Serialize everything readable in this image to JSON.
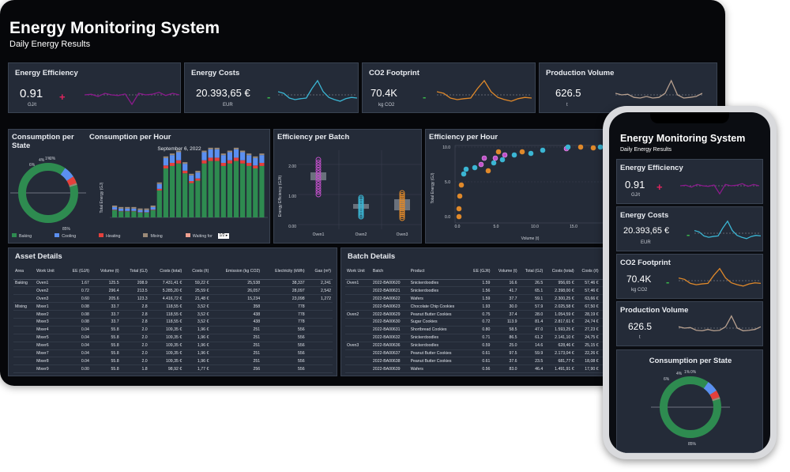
{
  "header": {
    "title": "Energy Monitoring System",
    "subtitle": "Daily Energy Results"
  },
  "kpis": [
    {
      "title": "Energy Efficiency",
      "value": "0.91",
      "unit": "GJ/t",
      "sign": "+",
      "sign_color": "#e0245e",
      "line_color": "#8b1a8c",
      "trend": [
        0.5,
        0.52,
        0.45,
        0.55,
        0.5,
        0.48,
        0.53,
        0.2,
        0.55,
        0.5,
        0.52,
        0.58,
        0.48,
        0.55,
        0.5
      ]
    },
    {
      "title": "Energy Costs",
      "value": "20.393,65 €",
      "unit": "EUR",
      "sign": "-",
      "sign_color": "#39b54a",
      "line_color": "#3bb6d4",
      "trend": [
        0.6,
        0.55,
        0.4,
        0.35,
        0.38,
        0.4,
        0.7,
        0.95,
        0.6,
        0.42,
        0.35,
        0.3,
        0.38,
        0.42,
        0.4
      ]
    },
    {
      "title": "CO2 Footprint",
      "value": "70.4K",
      "unit": "kg CO2",
      "sign": "-",
      "sign_color": "#39b54a",
      "line_color": "#e0892a",
      "trend": [
        0.6,
        0.55,
        0.4,
        0.35,
        0.38,
        0.4,
        0.7,
        0.95,
        0.6,
        0.42,
        0.35,
        0.3,
        0.38,
        0.42,
        0.4
      ]
    },
    {
      "title": "Production Volume",
      "value": "626.5",
      "unit": "t",
      "sign": "",
      "sign_color": "#ffffff",
      "line_color": "#b7a08f",
      "trend": [
        0.55,
        0.5,
        0.52,
        0.42,
        0.4,
        0.45,
        0.4,
        0.42,
        0.55,
        0.95,
        0.5,
        0.4,
        0.42,
        0.45,
        0.55
      ]
    }
  ],
  "consumption_state": {
    "title": "Consumption per State",
    "labels": {
      "baking": "85%",
      "cooling": "6%",
      "heating": "4%",
      "mixing": "1%",
      "waiting": "0%"
    }
  },
  "consumption_hour": {
    "title": "Consumption per Hour",
    "date": "September 6, 2022",
    "ylabel": "Total Energy (GJ)",
    "legend": [
      "Baking",
      "Cooling",
      "Heating",
      "Mixing",
      "Waiting for"
    ],
    "legend_colors": [
      "#2e8b50",
      "#5b8ff0",
      "#e4403c",
      "#9b8a78",
      "#f0a090"
    ]
  },
  "efficiency_batch": {
    "title": "Efficiency per Batch",
    "ylabel": "Energy Efficiency (GJ/t)",
    "categories": [
      "Oven1",
      "Oven2",
      "Oven3"
    ],
    "ticks": [
      "2.00",
      "1.00",
      "0.00"
    ]
  },
  "efficiency_hour": {
    "title": "Efficiency per Hour",
    "xlabel": "Volume (t)",
    "ylabel": "Total Energy (GJ)",
    "xticks": [
      "0.0",
      "5.0",
      "10.0",
      "15.0"
    ],
    "yticks": [
      "10.0",
      "5.0",
      "0.0"
    ]
  },
  "asset_details": {
    "title": "Asset Details",
    "columns": [
      "Area",
      "Work Unit",
      "EE (GJ/t)",
      "Volume (t)",
      "Total (GJ)",
      "Costs (total)",
      "Costs (/t)",
      "Emission (kg CO2)",
      "Electricity (kWh)",
      "Gas (m³)"
    ],
    "rows": [
      [
        "Baking",
        "Oven1",
        "1.67",
        "125.5",
        "208.9",
        "7.431,41 €",
        "59,22 €",
        "25,538",
        "38,337",
        "2,241"
      ],
      [
        "",
        "Oven2",
        "0.72",
        "296.4",
        "213.5",
        "5.285,20 €",
        "25,59 €",
        "26,057",
        "28,097",
        "2,542"
      ],
      [
        "",
        "Oven3",
        "0.60",
        "205.6",
        "123.3",
        "4.416,72 €",
        "21,48 €",
        "15,234",
        "23,098",
        "1,272"
      ],
      [
        "Mixing",
        "Mixer1",
        "0.08",
        "33.7",
        "2.8",
        "118,55 €",
        "3,52 €",
        "358",
        "778",
        ""
      ],
      [
        "",
        "Mixer2",
        "0.08",
        "33.7",
        "2.8",
        "118,55 €",
        "3,52 €",
        "438",
        "778",
        ""
      ],
      [
        "",
        "Mixer3",
        "0.08",
        "33.7",
        "2.8",
        "118,55 €",
        "3,52 €",
        "438",
        "778",
        ""
      ],
      [
        "",
        "Mixer4",
        "0.04",
        "55.8",
        "2.0",
        "109,35 €",
        "1,96 €",
        "251",
        "556",
        ""
      ],
      [
        "",
        "Mixer5",
        "0.04",
        "55.8",
        "2.0",
        "109,35 €",
        "1,96 €",
        "251",
        "556",
        ""
      ],
      [
        "",
        "Mixer6",
        "0.04",
        "55.8",
        "2.0",
        "109,35 €",
        "1,96 €",
        "251",
        "556",
        ""
      ],
      [
        "",
        "Mixer7",
        "0.04",
        "55.8",
        "2.0",
        "109,35 €",
        "1,96 €",
        "251",
        "556",
        ""
      ],
      [
        "",
        "Mixer8",
        "0.04",
        "55.8",
        "2.0",
        "109,35 €",
        "1,96 €",
        "251",
        "556",
        ""
      ],
      [
        "",
        "Mixer9",
        "0.00",
        "55.8",
        "1.8",
        "98,92 €",
        "1,77 €",
        "256",
        "556",
        ""
      ]
    ]
  },
  "batch_details": {
    "title": "Batch Details",
    "columns": [
      "Work Unit",
      "Batch",
      "Product",
      "EE (GJ/t)",
      "Volume (t)",
      "Total (GJ)",
      "Costs (total)",
      "Costs (/t)",
      "Emiss"
    ],
    "rows": [
      [
        "Oven1",
        "2022-BA00620",
        "Snickerdoodles",
        "1.59",
        "16.6",
        "26.5",
        "956,65 €",
        "57,46 €",
        ""
      ],
      [
        "",
        "2022-BA00621",
        "Snickerdoodles",
        "1.56",
        "41.7",
        "65.1",
        "2.398,00 €",
        "57,46 €",
        ""
      ],
      [
        "",
        "2022-BA00622",
        "Wafers",
        "1.59",
        "37.7",
        "59.1",
        "2.300,25 €",
        "63,66 €",
        ""
      ],
      [
        "",
        "2022-BA00623",
        "Chocolate Chip Cookies",
        "1.93",
        "30.0",
        "57.9",
        "2.025,58 €",
        "67,50 €",
        ""
      ],
      [
        "Oven2",
        "2022-BA00629",
        "Peanut Butter Cookies",
        "0.75",
        "37.4",
        "28.0",
        "1.054,59 €",
        "28,19 €",
        ""
      ],
      [
        "",
        "2022-BA00630",
        "Sugar Cookies",
        "0.72",
        "113.9",
        "81.4",
        "2.817,61 €",
        "24,74 €",
        ""
      ],
      [
        "",
        "2022-BA00631",
        "Shortbread Cookies",
        "0.80",
        "58.5",
        "47.0",
        "1.593,25 €",
        "27,23 €",
        ""
      ],
      [
        "",
        "2022-BA00632",
        "Snickerdoodles",
        "0.71",
        "86.5",
        "61.2",
        "2.141,10 €",
        "24,75 €",
        ""
      ],
      [
        "Oven3",
        "2022-BA00636",
        "Snickerdoodles",
        "0.59",
        "25.0",
        "14.6",
        "628,46 €",
        "25,15 €",
        ""
      ],
      [
        "",
        "2022-BA00637",
        "Peanut Butter Cookies",
        "0.61",
        "97.5",
        "59.9",
        "2.173,04 €",
        "22,26 €",
        ""
      ],
      [
        "",
        "2022-BA00638",
        "Peanut Butter Cookies",
        "0.61",
        "37.6",
        "23.5",
        "681,77 €",
        "18,08 €",
        ""
      ],
      [
        "",
        "2022-BA00639",
        "Wafers",
        "0.56",
        "83.0",
        "46.4",
        "1.491,91 €",
        "17,90 €",
        ""
      ]
    ]
  },
  "phone": {
    "title": "Energy Monitoring System",
    "subtitle": "Daily Energy Results",
    "donut_title": "Consumption per State"
  }
}
